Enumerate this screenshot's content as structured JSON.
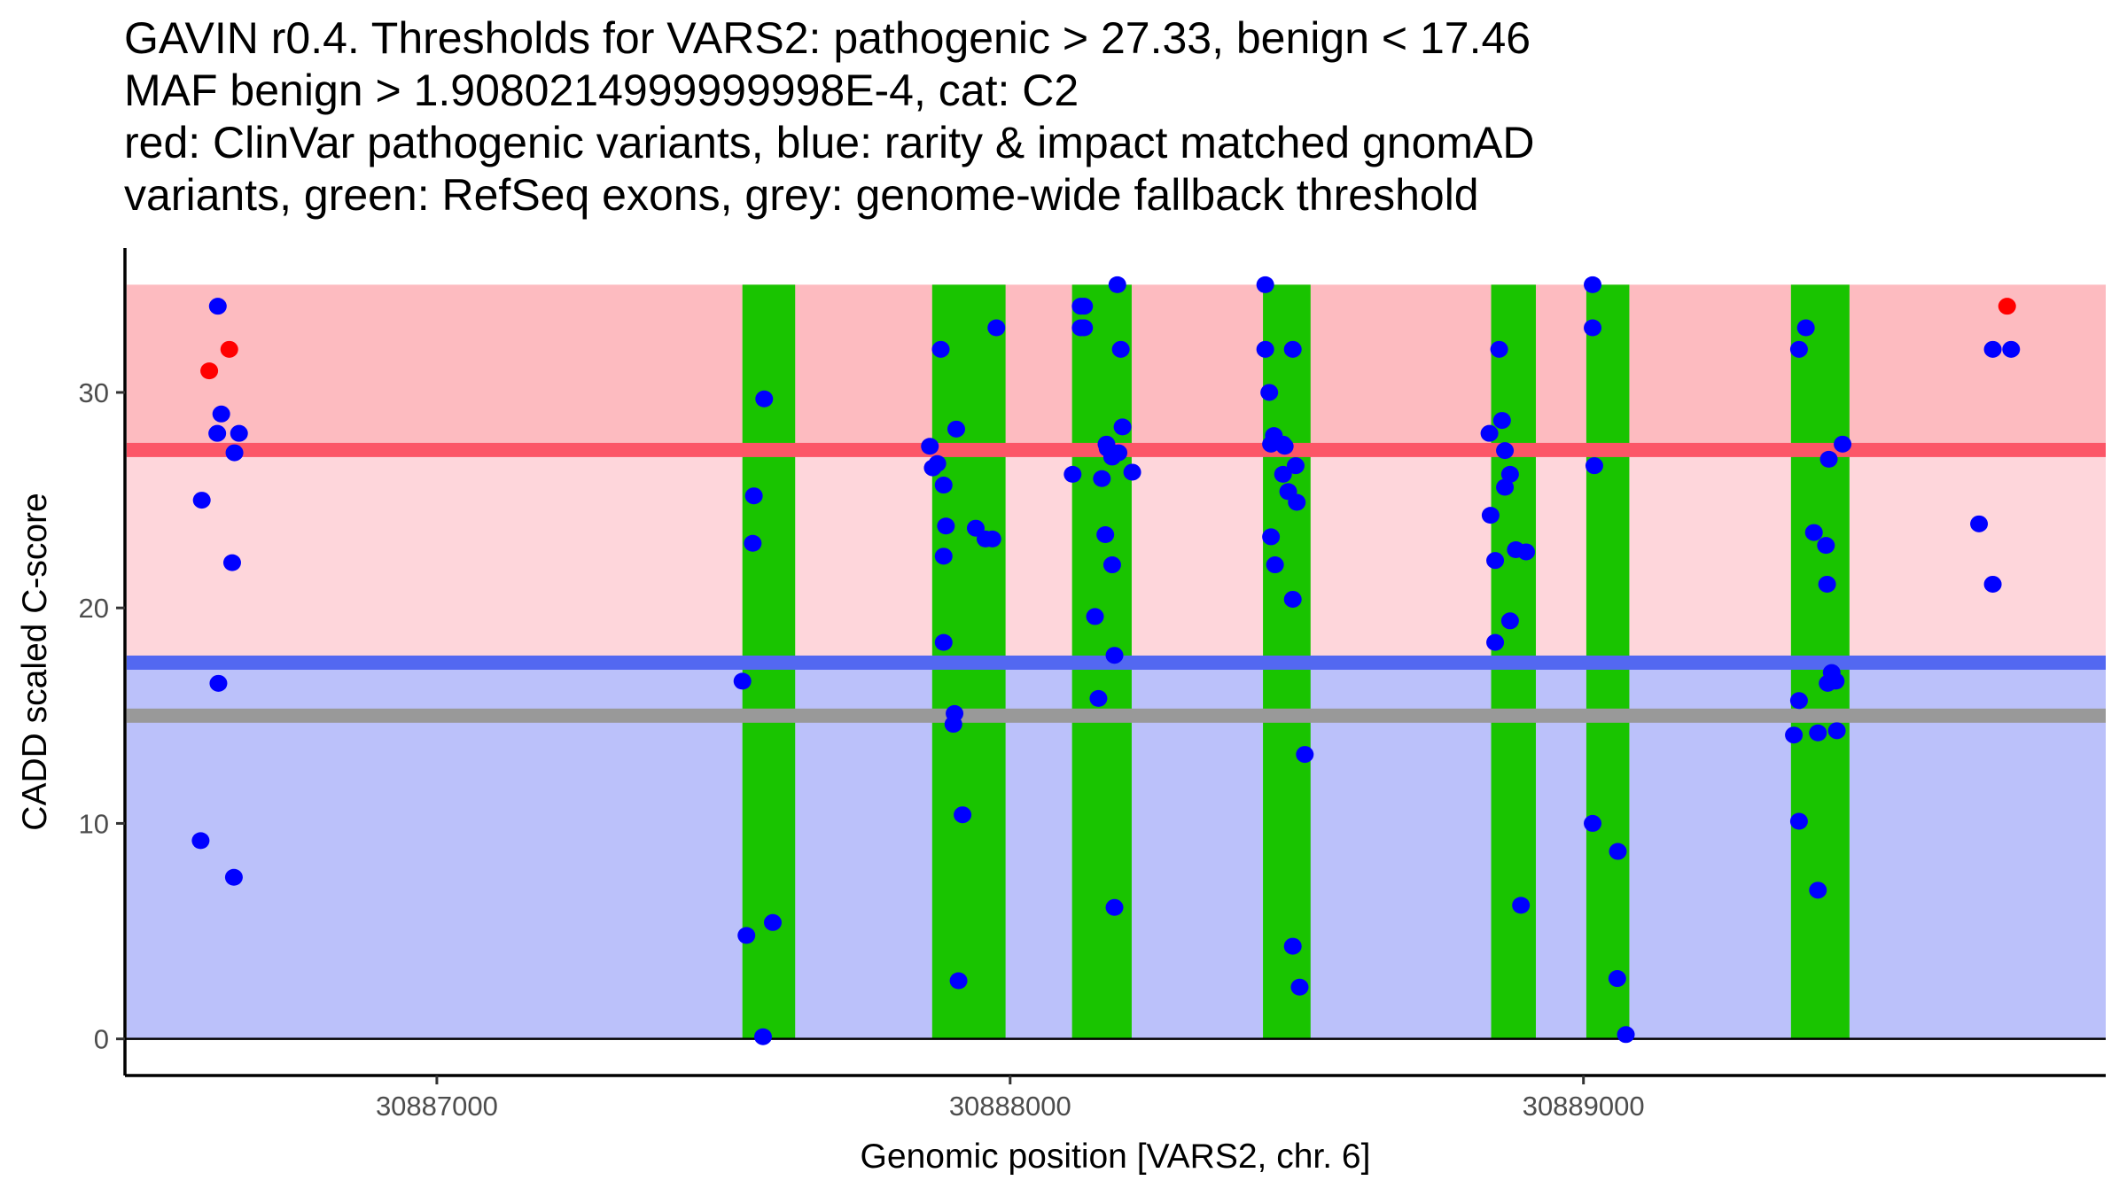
{
  "chart_data": {
    "type": "scatter",
    "title_lines": [
      "GAVIN r0.4. Thresholds for VARS2: pathogenic > 27.33, benign < 17.46",
      "MAF benign > 1.9080214999999998E-4, cat: C2",
      "red: ClinVar pathogenic variants, blue: rarity & impact matched gnomAD",
      "variants, green: RefSeq exons, grey: genome-wide fallback threshold"
    ],
    "xlabel": "Genomic position [VARS2, chr. 6]",
    "ylabel": "CADD scaled C-score",
    "xlim": [
      30886456,
      30889911
    ],
    "ylim": [
      -1.7,
      36.7
    ],
    "x_ticks": [
      30887000,
      30888000,
      30889000
    ],
    "x_tick_labels": [
      "30887000",
      "30888000",
      "30889000"
    ],
    "y_ticks": [
      0,
      10,
      20,
      30
    ],
    "y_tick_labels": [
      "0",
      "10",
      "20",
      "30"
    ],
    "grid": false,
    "thresholds": {
      "pathogenic": 27.33,
      "benign": 17.46,
      "genome_wide_fallback": 15.0,
      "score_max": 35
    },
    "colors": {
      "pathogenic_zone": "#fdbbc0",
      "vus_zone": "#fed6db",
      "benign_zone": "#bbc1fa",
      "pathogenic_line": "#fc5667",
      "benign_line": "#5368f1",
      "fallback_line": "#999999",
      "exon": "#19c400",
      "clinvar_point": "#ff0000",
      "gnomad_point": "#0000ff"
    },
    "exons": [
      [
        30887533,
        30887625
      ],
      [
        30887864,
        30887992
      ],
      [
        30888108,
        30888212
      ],
      [
        30888441,
        30888524
      ],
      [
        30888839,
        30888917
      ],
      [
        30889005,
        30889080
      ],
      [
        30889362,
        30889464
      ]
    ],
    "series": [
      {
        "name": "ClinVar pathogenic",
        "color": "#ff0000",
        "points": [
          [
            30886603,
            31.0
          ],
          [
            30886638,
            32.0
          ],
          [
            30889739,
            34.0
          ]
        ]
      },
      {
        "name": "gnomAD matched",
        "color": "#0000ff",
        "points": [
          [
            30886618,
            34.0
          ],
          [
            30886624,
            29.0
          ],
          [
            30886617,
            28.1
          ],
          [
            30886655,
            28.1
          ],
          [
            30886647,
            27.2
          ],
          [
            30886590,
            25.0
          ],
          [
            30886643,
            22.1
          ],
          [
            30886619,
            16.5
          ],
          [
            30886588,
            9.2
          ],
          [
            30886646,
            7.5
          ],
          [
            30887533,
            16.6
          ],
          [
            30887540,
            4.8
          ],
          [
            30887553,
            25.2
          ],
          [
            30887551,
            23.0
          ],
          [
            30887571,
            29.7
          ],
          [
            30887569,
            0.1
          ],
          [
            30887586,
            5.4
          ],
          [
            30887860,
            27.5
          ],
          [
            30887865,
            26.5
          ],
          [
            30887873,
            26.7
          ],
          [
            30887879,
            32.0
          ],
          [
            30887884,
            25.7
          ],
          [
            30887884,
            22.4
          ],
          [
            30887888,
            23.8
          ],
          [
            30887884,
            18.4
          ],
          [
            30887906,
            28.3
          ],
          [
            30887903,
            15.1
          ],
          [
            30887901,
            14.6
          ],
          [
            30887917,
            10.4
          ],
          [
            30887910,
            2.7
          ],
          [
            30887940,
            23.7
          ],
          [
            30887957,
            23.2
          ],
          [
            30887969,
            23.2
          ],
          [
            30887976,
            33.0
          ],
          [
            30888123,
            34.0
          ],
          [
            30888129,
            34.0
          ],
          [
            30888123,
            33.0
          ],
          [
            30888129,
            33.0
          ],
          [
            30888109,
            26.2
          ],
          [
            30888187,
            35.0
          ],
          [
            30888168,
            27.6
          ],
          [
            30888170,
            27.4
          ],
          [
            30888178,
            27.0
          ],
          [
            30888189,
            27.2
          ],
          [
            30888196,
            28.4
          ],
          [
            30888193,
            32.0
          ],
          [
            30888160,
            26.0
          ],
          [
            30888213,
            26.3
          ],
          [
            30888166,
            23.4
          ],
          [
            30888178,
            22.0
          ],
          [
            30888148,
            19.6
          ],
          [
            30888182,
            17.8
          ],
          [
            30888154,
            15.8
          ],
          [
            30888182,
            6.1
          ],
          [
            30888445,
            35.0
          ],
          [
            30888445,
            32.0
          ],
          [
            30888452,
            30.0
          ],
          [
            30888455,
            27.6
          ],
          [
            30888460,
            28.0
          ],
          [
            30888476,
            27.6
          ],
          [
            30888479,
            27.5
          ],
          [
            30888476,
            26.2
          ],
          [
            30888485,
            25.4
          ],
          [
            30888493,
            32.0
          ],
          [
            30888498,
            26.6
          ],
          [
            30888500,
            24.9
          ],
          [
            30888455,
            23.3
          ],
          [
            30888462,
            22.0
          ],
          [
            30888493,
            20.4
          ],
          [
            30888514,
            13.2
          ],
          [
            30888493,
            4.3
          ],
          [
            30888505,
            2.4
          ],
          [
            30888836,
            28.1
          ],
          [
            30888838,
            24.3
          ],
          [
            30888846,
            22.2
          ],
          [
            30888846,
            18.4
          ],
          [
            30888853,
            32.0
          ],
          [
            30888858,
            28.7
          ],
          [
            30888863,
            27.3
          ],
          [
            30888863,
            25.6
          ],
          [
            30888872,
            26.2
          ],
          [
            30888872,
            19.4
          ],
          [
            30888882,
            22.7
          ],
          [
            30888900,
            22.6
          ],
          [
            30888891,
            6.2
          ],
          [
            30889016,
            35.0
          ],
          [
            30889016,
            33.0
          ],
          [
            30889019,
            26.6
          ],
          [
            30889016,
            10.0
          ],
          [
            30889060,
            8.7
          ],
          [
            30889059,
            2.8
          ],
          [
            30889074,
            0.2
          ],
          [
            30889367,
            14.1
          ],
          [
            30889376,
            15.7
          ],
          [
            30889376,
            10.1
          ],
          [
            30889376,
            32.0
          ],
          [
            30889388,
            33.0
          ],
          [
            30889402,
            23.5
          ],
          [
            30889409,
            14.2
          ],
          [
            30889409,
            6.9
          ],
          [
            30889423,
            22.9
          ],
          [
            30889425,
            21.1
          ],
          [
            30889426,
            16.5
          ],
          [
            30889428,
            26.9
          ],
          [
            30889433,
            17.0
          ],
          [
            30889440,
            16.6
          ],
          [
            30889442,
            14.3
          ],
          [
            30889452,
            27.6
          ],
          [
            30889690,
            23.9
          ],
          [
            30889714,
            21.1
          ],
          [
            30889714,
            32.0
          ],
          [
            30889746,
            32.0
          ]
        ]
      }
    ]
  }
}
